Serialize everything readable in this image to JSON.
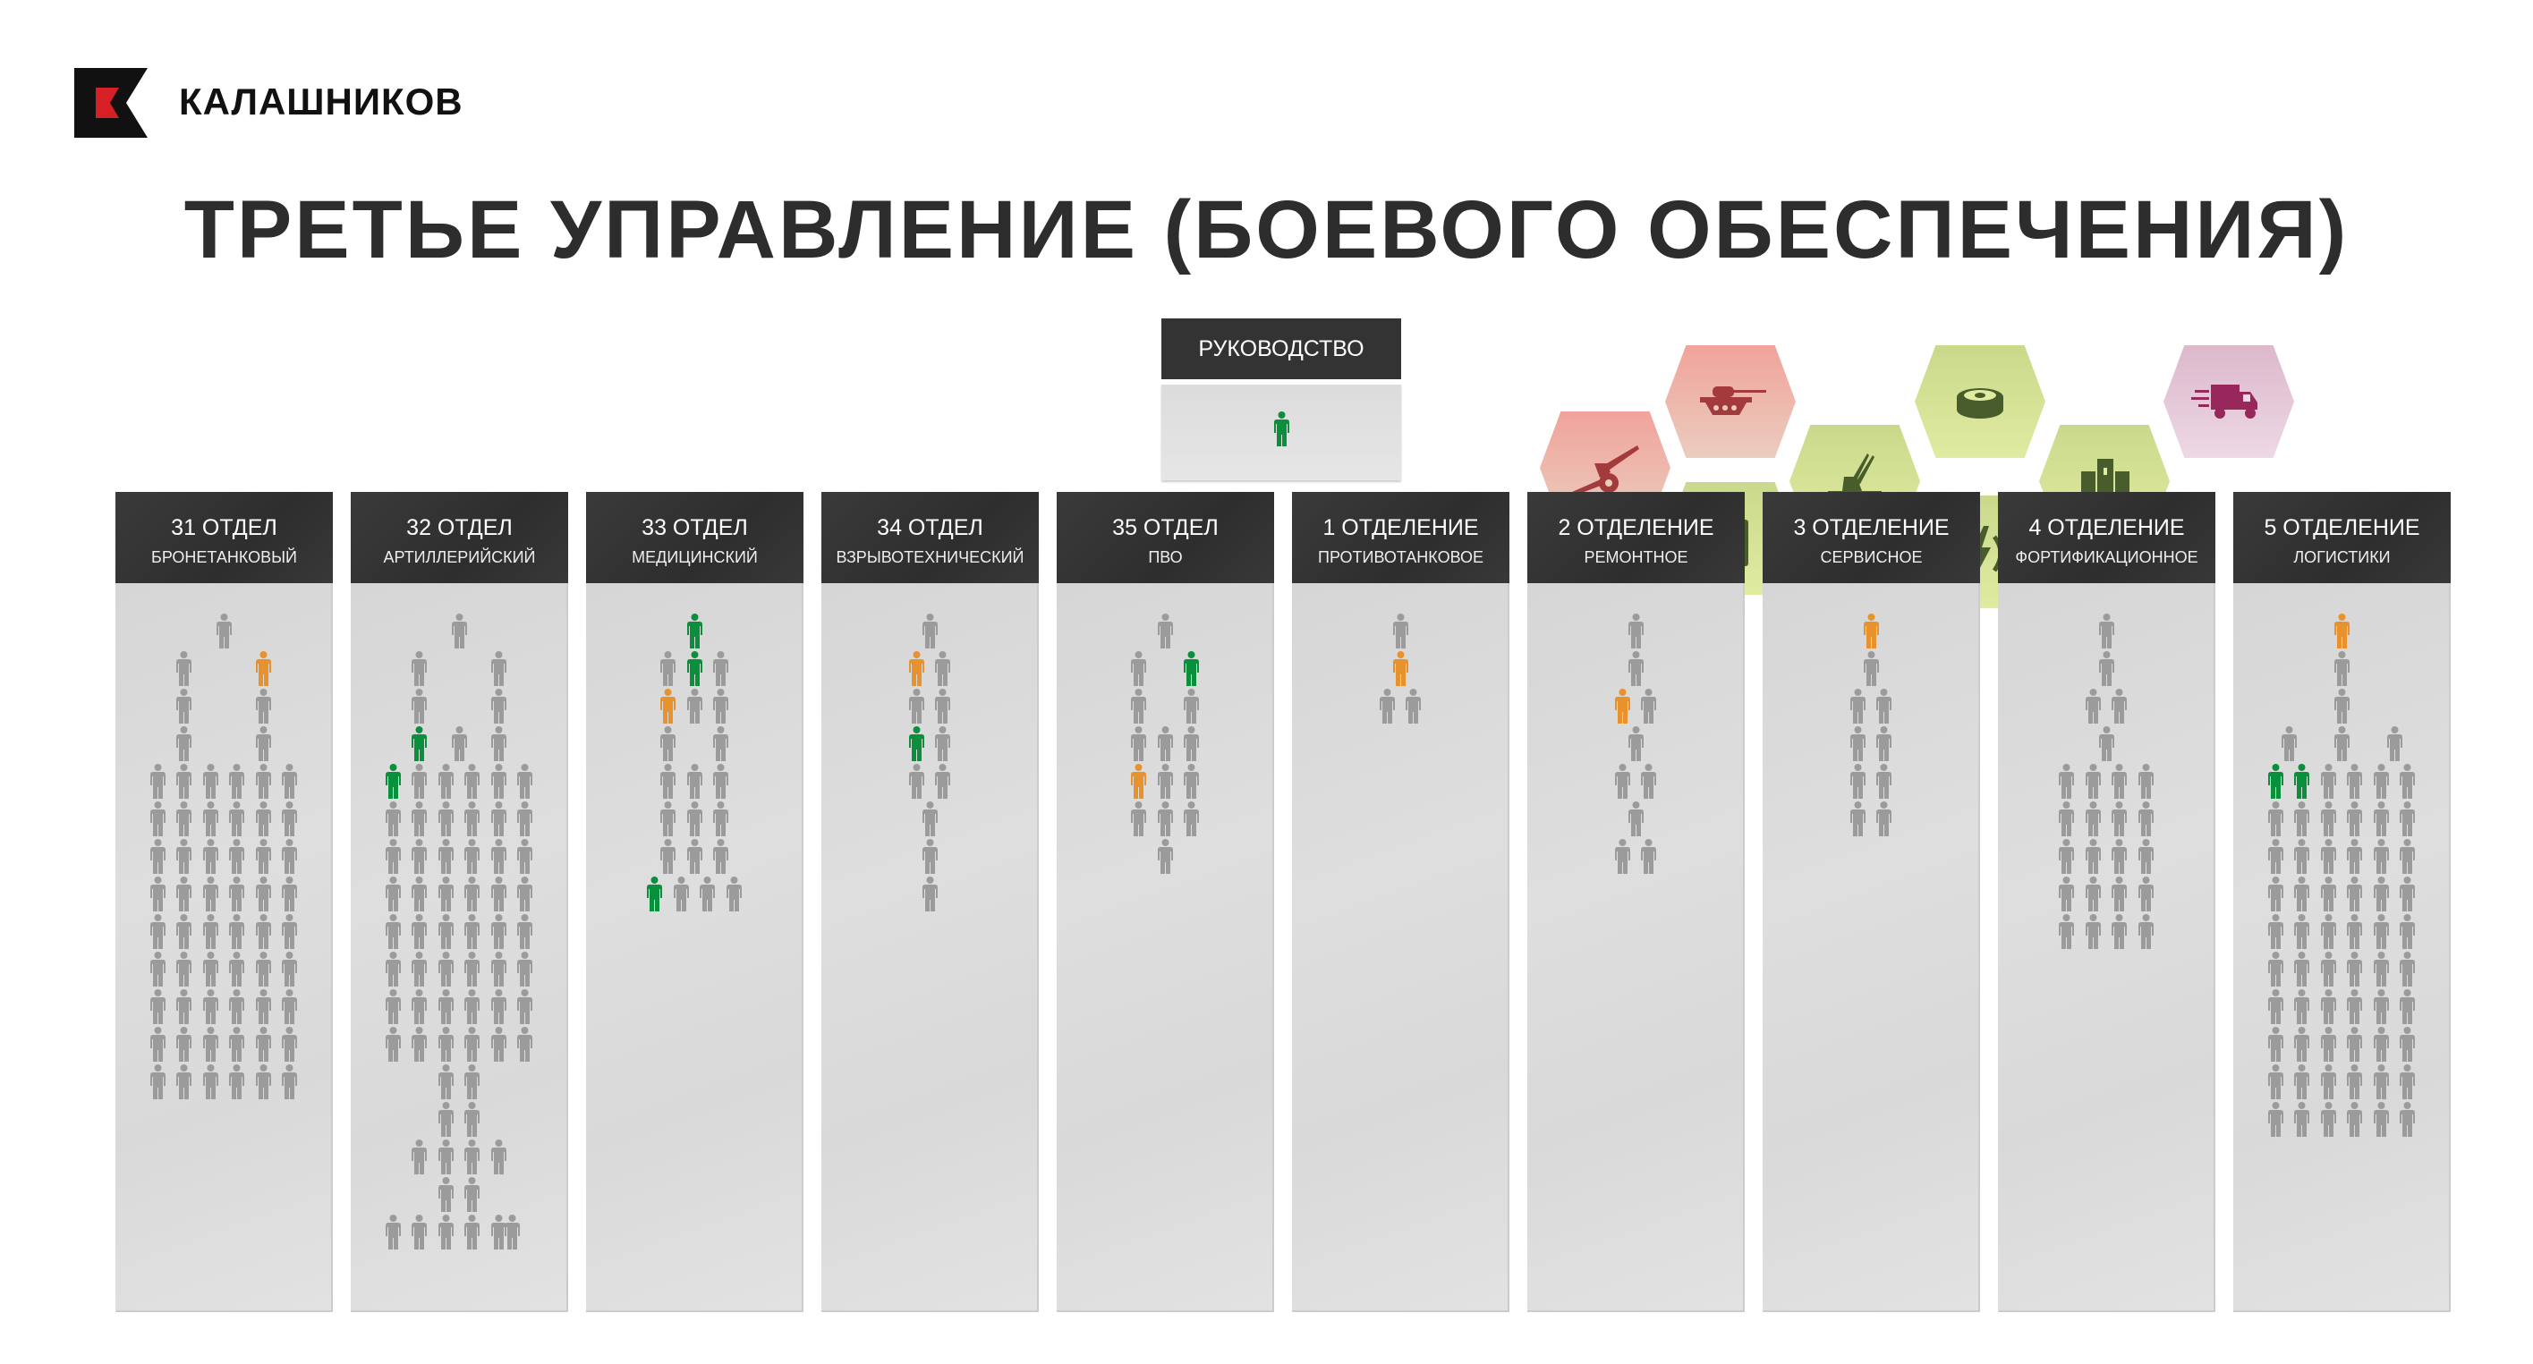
{
  "brand": {
    "name": "КАЛАШНИКОВ",
    "logo_colors": {
      "black": "#111111",
      "red": "#d71f26"
    }
  },
  "title": "ТРЕТЬЕ УПРАВЛЕНИЕ (БОЕВОГО ОБЕСПЕЧЕНИЯ)",
  "legend_colors": {
    "g": "#9b9b9b",
    "o": "#e8922e",
    "G": "#0a8f3c"
  },
  "leadership": {
    "label": "РУКОВОДСТВО",
    "rows": [
      ".....G....."
    ]
  },
  "hexes": [
    {
      "icon": "howitzer-icon",
      "theme": "red"
    },
    {
      "icon": "tank-icon",
      "theme": "red"
    },
    {
      "icon": "medical-kit-icon",
      "theme": "green"
    },
    {
      "icon": "anti-aircraft-icon",
      "theme": "green"
    },
    {
      "icon": "landmine-icon",
      "theme": "green"
    },
    {
      "icon": "power-lightning-icon",
      "theme": "green"
    },
    {
      "icon": "fortress-icon",
      "theme": "green"
    },
    {
      "icon": "delivery-truck-icon",
      "theme": "purple"
    }
  ],
  "hex_themes": {
    "red": {
      "top": "#f0a39a",
      "bottom": "#ebcdbf",
      "icon": "#a33a3c"
    },
    "green": {
      "top": "#c9d98a",
      "bottom": "#e0eba2",
      "icon": "#485d2b"
    },
    "purple": {
      "top": "#dcb8cb",
      "bottom": "#edd9e4",
      "icon": "#98275b"
    }
  },
  "departments": [
    {
      "title": "31 ОТДЕЛ",
      "subtitle": "БРОНЕТАНКОВЫЙ",
      "rows": [
        ".....g.....",
        "..g.....o..",
        "..g.....g..",
        "..g.....g..",
        "g.g.g.g.g.g",
        "g.g.g.g.g.g",
        "g.g.g.g.g.g",
        "g.g.g.g.g.g",
        "g.g.g.g.g.g",
        "g.g.g.g.g.g",
        "g.g.g.g.g.g",
        "g.g.g.g.g.g",
        "g.g.g.g.g.g"
      ]
    },
    {
      "title": "32 ОТДЕЛ",
      "subtitle": "АРТИЛЛЕРИЙСКИЙ",
      "rows": [
        ".....g.....",
        "..g.....g..",
        "..g.....g..",
        "..G..g..g..",
        "G.g.g.g.g.g",
        "g.g.g.g.g.g",
        "g.g.g.g.g.g",
        "g.g.g.g.g.g",
        "g.g.g.g.g.g",
        "g.g.g.g.g.g",
        "g.g.g.g.g.g",
        "g.g.g.g.g.g",
        "....g.g....",
        "....g.g....",
        "..g.g.g.g..",
        "....g.g....",
        "g.g.g.g.gg."
      ]
    },
    {
      "title": "33 ОТДЕЛ",
      "subtitle": "МЕДИЦИНСКИЙ",
      "rows": [
        ".....G.....",
        "...g.G.g...",
        "...o.g.g...",
        "...g...g...",
        "...g.g.g...",
        "...g.g.g...",
        "...g.g.g...",
        "..G.g.g.g.."
      ]
    },
    {
      "title": "34 ОТДЕЛ",
      "subtitle": "ВЗРЫВОТЕХНИЧЕСКИЙ",
      "rows": [
        ".....g.....",
        "....o.g....",
        "....g.g....",
        "....G.g....",
        "....g.g....",
        ".....g.....",
        ".....g.....",
        ".....g....."
      ]
    },
    {
      "title": "35 ОТДЕЛ",
      "subtitle": "ПВО",
      "rows": [
        ".....g.....",
        "...g...G...",
        "...g...g...",
        "...g.g.g...",
        "...o.g.g...",
        "...g.g.g...",
        ".....g....."
      ]
    },
    {
      "title": "1 ОТДЕЛЕНИЕ",
      "subtitle": "ПРОТИВОТАНКОВОЕ",
      "rows": [
        ".....g.....",
        ".....o.....",
        "....g.g...."
      ]
    },
    {
      "title": "2 ОТДЕЛЕНИЕ",
      "subtitle": "РЕМОНТНОЕ",
      "rows": [
        ".....g.....",
        ".....g.....",
        "....o.g....",
        ".....g.....",
        "....g.g....",
        ".....g.....",
        "....g.g...."
      ]
    },
    {
      "title": "3 ОТДЕЛЕНИЕ",
      "subtitle": "СЕРВИСНОЕ",
      "rows": [
        ".....o.....",
        ".....g.....",
        "....g.g....",
        "....g.g....",
        "....g.g....",
        "....g.g...."
      ]
    },
    {
      "title": "4 ОТДЕЛЕНИЕ",
      "subtitle": "ФОРТИФИКАЦИОННОЕ",
      "rows": [
        ".....g.....",
        ".....g.....",
        "....g.g....",
        ".....g.....",
        "..g.g.g.g..",
        "..g.g.g.g..",
        "..g.g.g.g..",
        "..g.g.g.g..",
        "..g.g.g.g.."
      ]
    },
    {
      "title": "5 ОТДЕЛЕНИЕ",
      "subtitle": "ЛОГИСТИКИ",
      "rows": [
        ".....o.....",
        ".....g.....",
        ".....g.....",
        ".g...g...g.",
        "G.G.g.g.g.g",
        "g.g.g.g.g.g",
        "g.g.g.g.g.g",
        "g.g.g.g.g.g",
        "g.g.g.g.g.g",
        "g.g.g.g.g.g",
        "g.g.g.g.g.g",
        "g.g.g.g.g.g",
        "g.g.g.g.g.g",
        "g.g.g.g.g.g"
      ]
    }
  ]
}
